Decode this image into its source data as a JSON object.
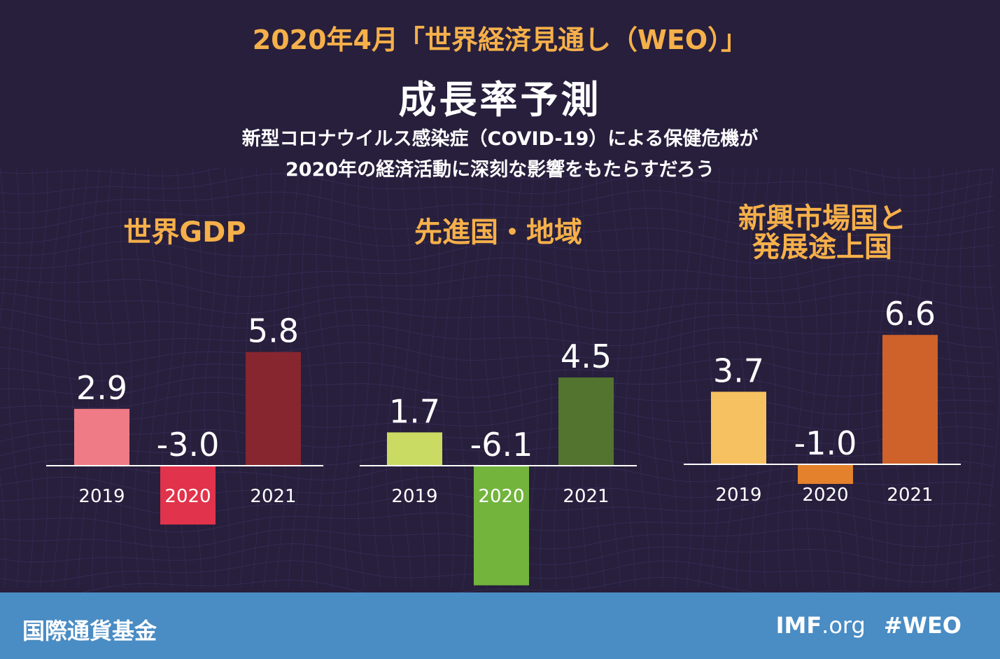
{
  "header": {
    "title": "2020年4月「世界経済見通し（WEO）」",
    "subtitle": "成長率予測",
    "description_line1": "新型コロナウイルス感染症（COVID-19）による保健危機が",
    "description_line2": "2020年の経済活動に深刻な影響をもたらすだろう"
  },
  "chart_data": [
    {
      "type": "bar",
      "title": "世界GDP",
      "categories": [
        "2019",
        "2020",
        "2021"
      ],
      "values": [
        2.9,
        -3.0,
        5.8
      ],
      "value_labels": [
        "2.9",
        "-3.0",
        "5.8"
      ],
      "colors": [
        "#ef7b86",
        "#e1334b",
        "#87262f"
      ]
    },
    {
      "type": "bar",
      "title": "先進国・地域",
      "categories": [
        "2019",
        "2020",
        "2021"
      ],
      "values": [
        1.7,
        -6.1,
        4.5
      ],
      "value_labels": [
        "1.7",
        "-6.1",
        "4.5"
      ],
      "colors": [
        "#cadb63",
        "#72b43c",
        "#52742f"
      ]
    },
    {
      "type": "bar",
      "title_lines": [
        "新興市場国と",
        "発展途上国"
      ],
      "categories": [
        "2019",
        "2020",
        "2021"
      ],
      "values": [
        3.7,
        -1.0,
        6.6
      ],
      "value_labels": [
        "3.7",
        "-1.0",
        "6.6"
      ],
      "colors": [
        "#f6c261",
        "#e3812c",
        "#cf622a"
      ]
    }
  ],
  "footer": {
    "org_name": "国際通貨基金",
    "site_main": "IMF",
    "site_suffix": ".org",
    "hashtag": "#WEO",
    "background": "#4a8cc4"
  },
  "colors": {
    "background": "#271f3c",
    "title": "#f6b04a",
    "text": "#ffffff"
  }
}
